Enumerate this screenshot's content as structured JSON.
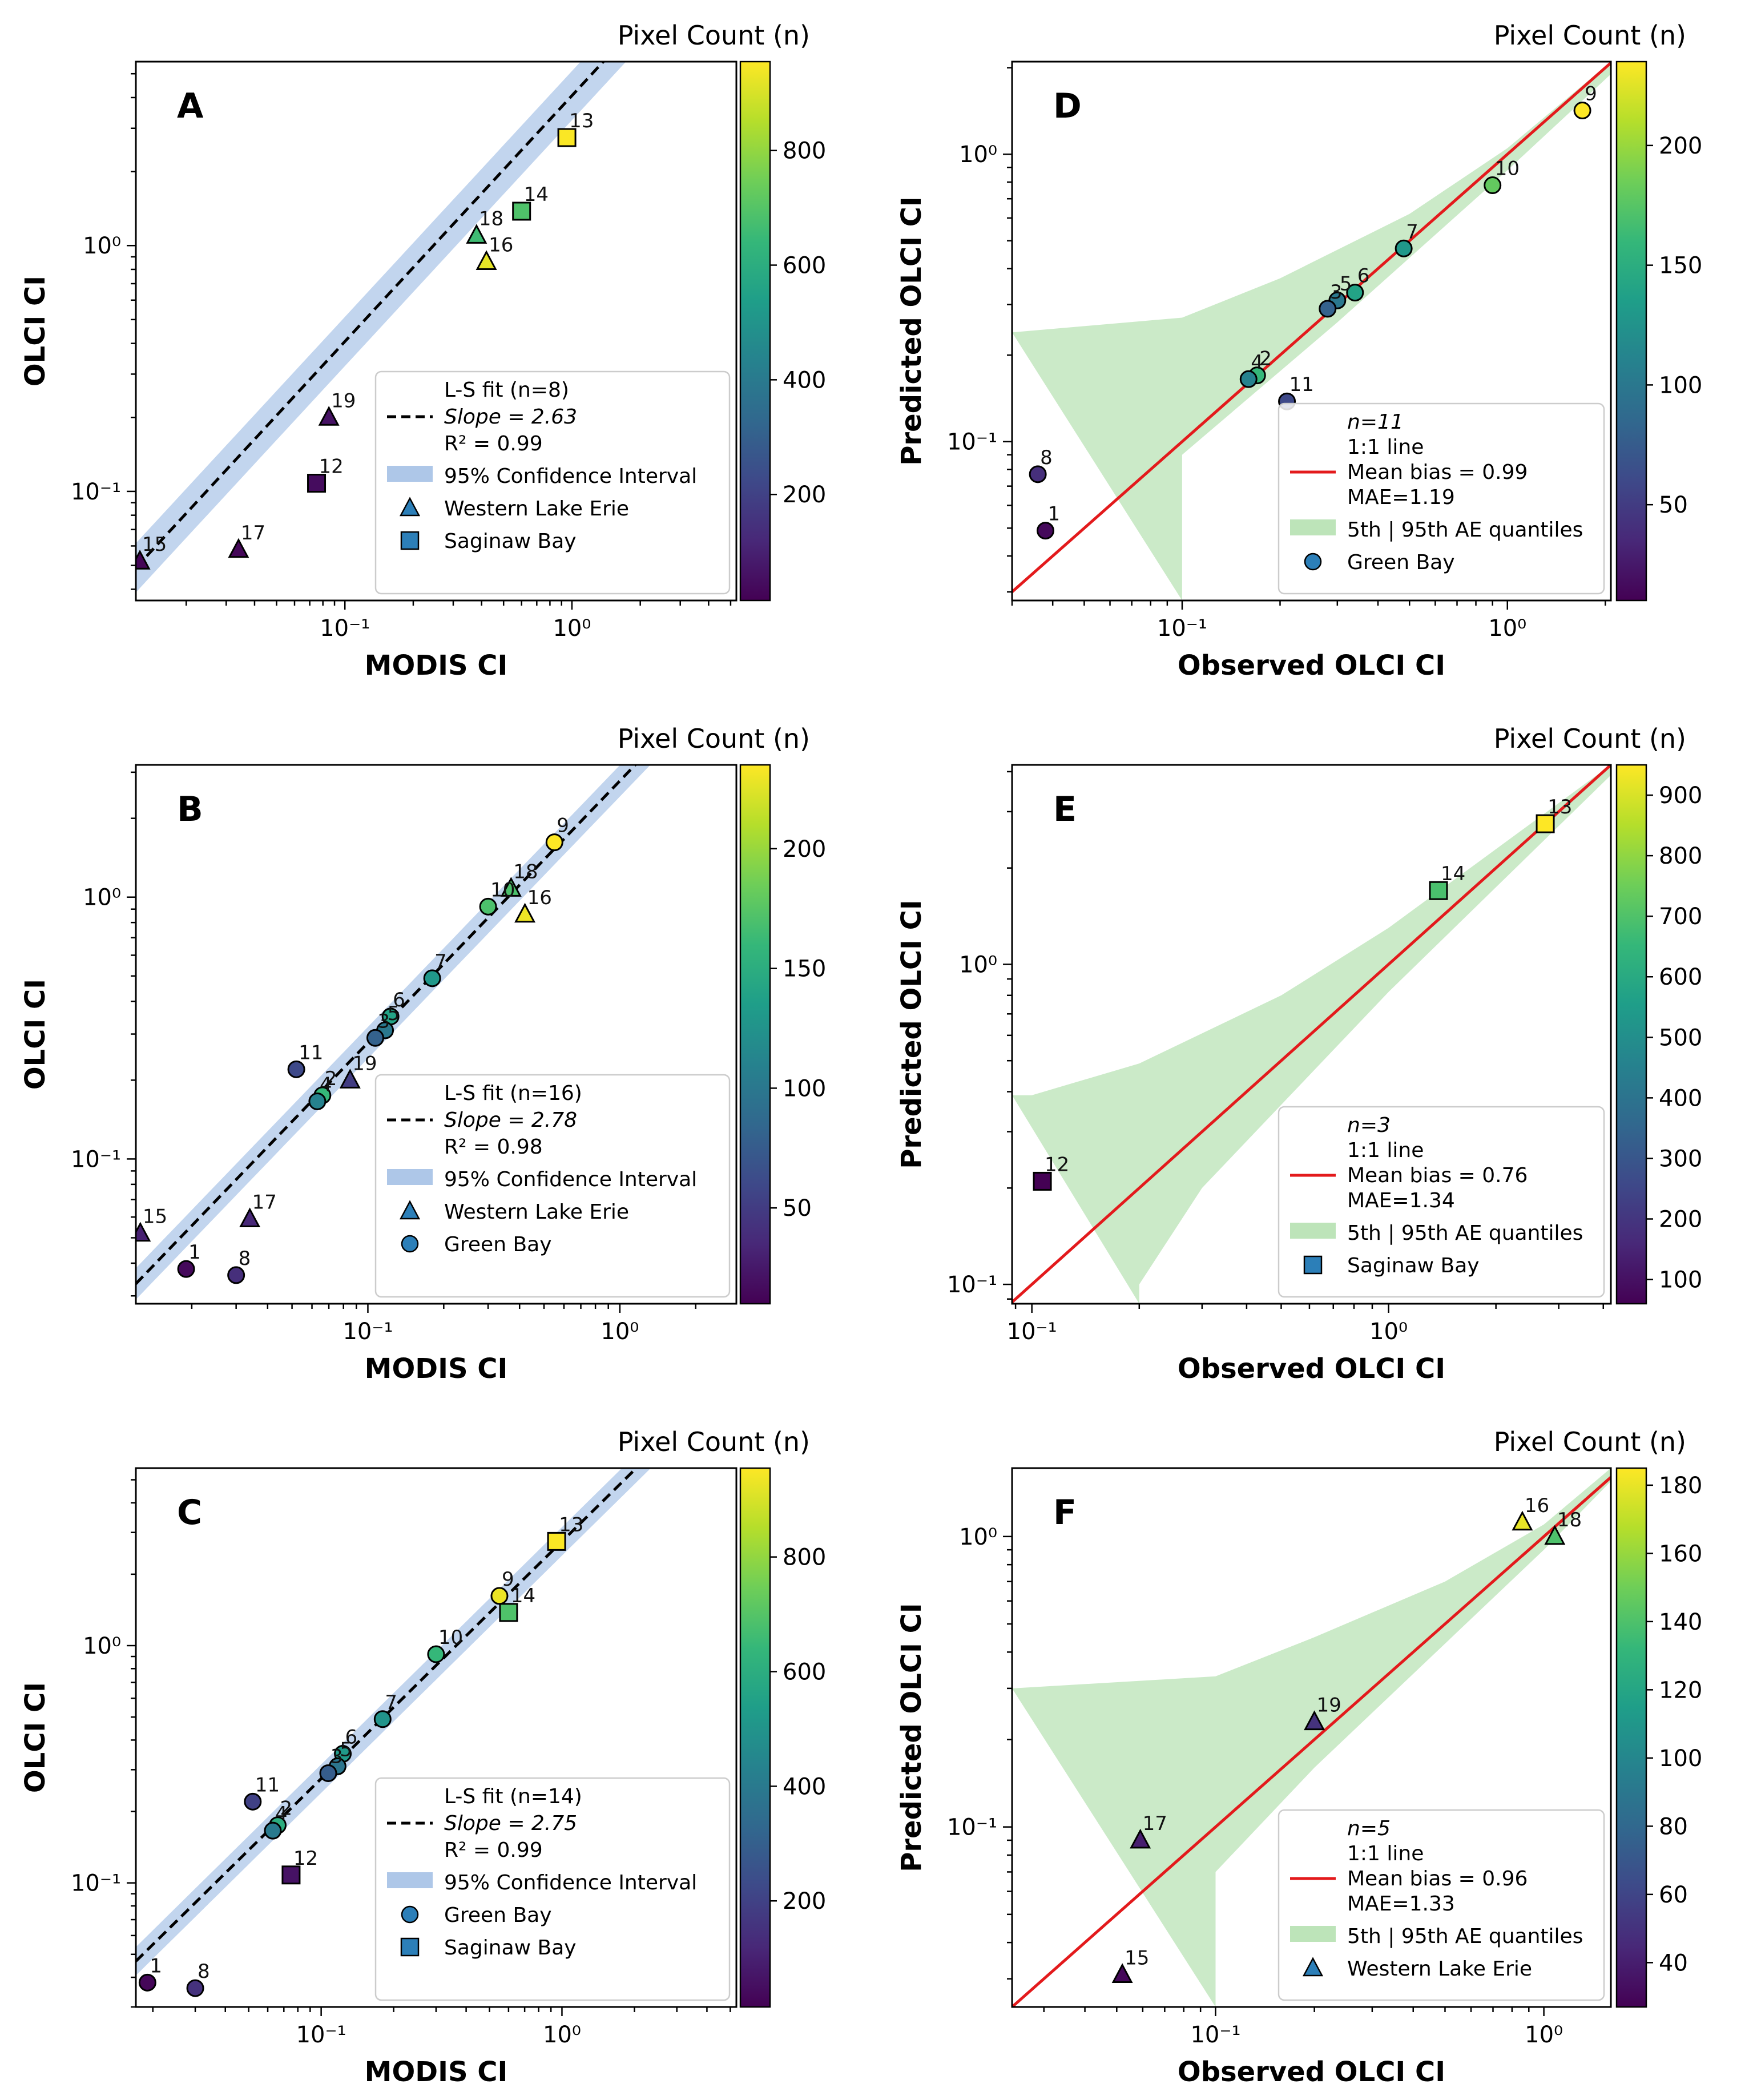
{
  "figure": {
    "panels": [
      {
        "letter": "A",
        "type": "scatter-loglog",
        "xlabel": "MODIS CI",
        "ylabel": "OLCI CI",
        "xlim": [
          0.012,
          5.3
        ],
        "ylim": [
          0.036,
          5.6
        ],
        "xticks": [
          {
            "v": 0.1,
            "label": "10⁻¹"
          },
          {
            "v": 1,
            "label": "10⁰"
          }
        ],
        "yticks": [
          {
            "v": 0.1,
            "label": "10⁻¹"
          },
          {
            "v": 1,
            "label": "10⁰"
          }
        ],
        "colorbar": {
          "title": "Pixel Count (n)",
          "min": 15,
          "max": 955,
          "ticks": [
            200,
            400,
            600,
            800
          ]
        },
        "fit": {
          "slope": 2.63,
          "intercept": 0.19,
          "band": 0.1
        },
        "legend": {
          "kind": "fit",
          "n_text": "L-S fit (n=8)",
          "slope_text": "Slope = 2.63",
          "r2_text": "R² = 0.99",
          "ci_text": "95% Confidence Interval",
          "entries": [
            {
              "marker": "triangle",
              "label": "Western Lake Erie"
            },
            {
              "marker": "square",
              "label": "Saginaw Bay"
            }
          ]
        },
        "points": [
          {
            "id": "13",
            "x": 0.95,
            "y": 2.75,
            "marker": "square",
            "n": 950
          },
          {
            "id": "14",
            "x": 0.6,
            "y": 1.38,
            "marker": "square",
            "n": 690
          },
          {
            "id": "18",
            "x": 0.38,
            "y": 1.1,
            "marker": "triangle",
            "n": 660
          },
          {
            "id": "16",
            "x": 0.42,
            "y": 0.86,
            "marker": "triangle",
            "n": 920
          },
          {
            "id": "19",
            "x": 0.085,
            "y": 0.2,
            "marker": "triangle",
            "n": 60
          },
          {
            "id": "12",
            "x": 0.075,
            "y": 0.108,
            "marker": "square",
            "n": 45
          },
          {
            "id": "17",
            "x": 0.034,
            "y": 0.058,
            "marker": "triangle",
            "n": 30
          },
          {
            "id": "15",
            "x": 0.0125,
            "y": 0.052,
            "marker": "triangle",
            "n": 25
          }
        ]
      },
      {
        "letter": "D",
        "type": "scatter-loglog",
        "xlabel": "Observed OLCI CI",
        "ylabel": "Predicted OLCI CI",
        "xlim": [
          0.03,
          2.08
        ],
        "ylim": [
          0.028,
          2.1
        ],
        "xticks": [
          {
            "v": 0.1,
            "label": "10⁻¹"
          },
          {
            "v": 1,
            "label": "10⁰"
          }
        ],
        "yticks": [
          {
            "v": 0.1,
            "label": "10⁻¹"
          },
          {
            "v": 1,
            "label": "10⁰"
          }
        ],
        "colorbar": {
          "title": "Pixel Count (n)",
          "min": 10,
          "max": 235,
          "ticks": [
            50,
            100,
            150,
            200
          ]
        },
        "oneone": true,
        "band": {
          "upper": [
            [
              0.03,
              0.24
            ],
            [
              0.1,
              0.27
            ],
            [
              0.2,
              0.37
            ],
            [
              0.5,
              0.62
            ],
            [
              1.0,
              1.05
            ],
            [
              2.08,
              2.1
            ]
          ],
          "lower": [
            [
              0.1,
              0.028
            ],
            [
              0.1,
              0.09
            ],
            [
              0.3,
              0.26
            ],
            [
              1.0,
              0.88
            ],
            [
              2.08,
              1.9
            ]
          ]
        },
        "legend": {
          "kind": "pred",
          "n_text": "n=11",
          "line_text": "1:1 line",
          "bias_text": "Mean bias = 0.99",
          "mae_text": "MAE=1.19",
          "band_text": "5th | 95th AE quantiles",
          "entries": [
            {
              "marker": "circle",
              "label": "Green Bay"
            }
          ]
        },
        "points": [
          {
            "id": "9",
            "x": 1.7,
            "y": 1.42,
            "marker": "circle",
            "n": 235
          },
          {
            "id": "10",
            "x": 0.9,
            "y": 0.78,
            "marker": "circle",
            "n": 180
          },
          {
            "id": "7",
            "x": 0.48,
            "y": 0.47,
            "marker": "circle",
            "n": 130
          },
          {
            "id": "6",
            "x": 0.34,
            "y": 0.33,
            "marker": "circle",
            "n": 140
          },
          {
            "id": "5",
            "x": 0.3,
            "y": 0.31,
            "marker": "circle",
            "n": 100
          },
          {
            "id": "3",
            "x": 0.28,
            "y": 0.29,
            "marker": "circle",
            "n": 80
          },
          {
            "id": "2",
            "x": 0.17,
            "y": 0.17,
            "marker": "circle",
            "n": 160
          },
          {
            "id": "4",
            "x": 0.16,
            "y": 0.165,
            "marker": "circle",
            "n": 110
          },
          {
            "id": "11",
            "x": 0.21,
            "y": 0.138,
            "marker": "circle",
            "n": 60
          },
          {
            "id": "8",
            "x": 0.036,
            "y": 0.077,
            "marker": "circle",
            "n": 40
          },
          {
            "id": "1",
            "x": 0.038,
            "y": 0.049,
            "marker": "circle",
            "n": 15
          }
        ]
      },
      {
        "letter": "B",
        "type": "scatter-loglog",
        "xlabel": "MODIS CI",
        "ylabel": "OLCI CI",
        "xlim": [
          0.012,
          2.9
        ],
        "ylim": [
          0.028,
          3.2
        ],
        "xticks": [
          {
            "v": 0.1,
            "label": "10⁻¹"
          },
          {
            "v": 1,
            "label": "10⁰"
          }
        ],
        "yticks": [
          {
            "v": 0.1,
            "label": "10⁻¹"
          },
          {
            "v": 1,
            "label": "10⁰"
          }
        ],
        "colorbar": {
          "title": "Pixel Count (n)",
          "min": 10,
          "max": 235,
          "ticks": [
            50,
            100,
            150,
            200
          ]
        },
        "fit": {
          "slope": 2.78,
          "intercept": 0.0,
          "band": 0.06
        },
        "legend": {
          "kind": "fit",
          "n_text": "L-S fit (n=16)",
          "slope_text": "Slope = 2.78",
          "r2_text": "R² = 0.98",
          "ci_text": "95% Confidence Interval",
          "entries": [
            {
              "marker": "triangle",
              "label": "Western Lake Erie"
            },
            {
              "marker": "circle",
              "label": "Green Bay"
            }
          ]
        },
        "points": [
          {
            "id": "9",
            "x": 0.55,
            "y": 1.62,
            "marker": "circle",
            "n": 235
          },
          {
            "id": "18",
            "x": 0.37,
            "y": 1.08,
            "marker": "triangle",
            "n": 170
          },
          {
            "id": "10",
            "x": 0.3,
            "y": 0.92,
            "marker": "circle",
            "n": 170
          },
          {
            "id": "16",
            "x": 0.42,
            "y": 0.86,
            "marker": "triangle",
            "n": 230
          },
          {
            "id": "7",
            "x": 0.18,
            "y": 0.49,
            "marker": "circle",
            "n": 130
          },
          {
            "id": "6",
            "x": 0.123,
            "y": 0.35,
            "marker": "circle",
            "n": 140
          },
          {
            "id": "5",
            "x": 0.117,
            "y": 0.31,
            "marker": "circle",
            "n": 100
          },
          {
            "id": "3",
            "x": 0.107,
            "y": 0.29,
            "marker": "circle",
            "n": 80
          },
          {
            "id": "11",
            "x": 0.052,
            "y": 0.22,
            "marker": "circle",
            "n": 60
          },
          {
            "id": "19",
            "x": 0.085,
            "y": 0.2,
            "marker": "triangle",
            "n": 50
          },
          {
            "id": "2",
            "x": 0.066,
            "y": 0.175,
            "marker": "circle",
            "n": 160
          },
          {
            "id": "4",
            "x": 0.063,
            "y": 0.166,
            "marker": "circle",
            "n": 110
          },
          {
            "id": "17",
            "x": 0.034,
            "y": 0.059,
            "marker": "triangle",
            "n": 35
          },
          {
            "id": "15",
            "x": 0.0125,
            "y": 0.052,
            "marker": "triangle",
            "n": 30
          },
          {
            "id": "1",
            "x": 0.019,
            "y": 0.038,
            "marker": "circle",
            "n": 15
          },
          {
            "id": "8",
            "x": 0.03,
            "y": 0.036,
            "marker": "circle",
            "n": 40
          }
        ]
      },
      {
        "letter": "E",
        "type": "scatter-loglog",
        "xlabel": "Observed OLCI CI",
        "ylabel": "Predicted OLCI CI",
        "xlim": [
          0.088,
          4.2
        ],
        "ylim": [
          0.087,
          4.2
        ],
        "xticks": [
          {
            "v": 0.1,
            "label": "10⁻¹"
          },
          {
            "v": 1,
            "label": "10⁰"
          }
        ],
        "yticks": [
          {
            "v": 0.1,
            "label": "10⁻¹"
          },
          {
            "v": 1,
            "label": "10⁰"
          }
        ],
        "colorbar": {
          "title": "Pixel Count (n)",
          "min": 60,
          "max": 950,
          "ticks": [
            100,
            200,
            300,
            400,
            500,
            600,
            700,
            800,
            900
          ]
        },
        "oneone": true,
        "band": {
          "upper": [
            [
              0.088,
              0.39
            ],
            [
              0.1,
              0.39
            ],
            [
              0.2,
              0.49
            ],
            [
              0.5,
              0.8
            ],
            [
              1.0,
              1.3
            ],
            [
              4.2,
              4.2
            ]
          ],
          "lower": [
            [
              0.2,
              0.087
            ],
            [
              0.2,
              0.1
            ],
            [
              0.3,
              0.2
            ],
            [
              1.0,
              0.82
            ],
            [
              4.2,
              3.9
            ]
          ]
        },
        "legend": {
          "kind": "pred",
          "n_text": "n=3",
          "line_text": "1:1 line",
          "bias_text": "Mean bias = 0.76",
          "mae_text": "MAE=1.34",
          "band_text": "5th | 95th AE quantiles",
          "entries": [
            {
              "marker": "square",
              "label": "Saginaw Bay"
            }
          ]
        },
        "points": [
          {
            "id": "13",
            "x": 2.75,
            "y": 2.75,
            "marker": "square",
            "n": 950
          },
          {
            "id": "14",
            "x": 1.38,
            "y": 1.7,
            "marker": "square",
            "n": 690
          },
          {
            "id": "12",
            "x": 0.107,
            "y": 0.21,
            "marker": "square",
            "n": 60
          }
        ]
      },
      {
        "letter": "C",
        "type": "scatter-loglog",
        "xlabel": "MODIS CI",
        "ylabel": "OLCI CI",
        "xlim": [
          0.017,
          5.3
        ],
        "ylim": [
          0.03,
          5.6
        ],
        "xticks": [
          {
            "v": 0.1,
            "label": "10⁻¹"
          },
          {
            "v": 1,
            "label": "10⁰"
          }
        ],
        "yticks": [
          {
            "v": 0.1,
            "label": "10⁻¹"
          },
          {
            "v": 1,
            "label": "10⁰"
          }
        ],
        "colorbar": {
          "title": "Pixel Count (n)",
          "min": 15,
          "max": 955,
          "ticks": [
            200,
            400,
            600,
            800
          ]
        },
        "fit": {
          "slope": 2.75,
          "intercept": 0.0,
          "band": 0.06
        },
        "legend": {
          "kind": "fit",
          "n_text": "L-S fit (n=14)",
          "slope_text": "Slope = 2.75",
          "r2_text": "R² = 0.99",
          "ci_text": "95% Confidence Interval",
          "entries": [
            {
              "marker": "circle",
              "label": "Green Bay"
            },
            {
              "marker": "square",
              "label": "Saginaw Bay"
            }
          ]
        },
        "points": [
          {
            "id": "13",
            "x": 0.95,
            "y": 2.75,
            "marker": "square",
            "n": 950
          },
          {
            "id": "9",
            "x": 0.55,
            "y": 1.62,
            "marker": "circle",
            "n": 930
          },
          {
            "id": "14",
            "x": 0.6,
            "y": 1.38,
            "marker": "square",
            "n": 690
          },
          {
            "id": "10",
            "x": 0.3,
            "y": 0.92,
            "marker": "circle",
            "n": 640
          },
          {
            "id": "7",
            "x": 0.18,
            "y": 0.49,
            "marker": "circle",
            "n": 500
          },
          {
            "id": "6",
            "x": 0.123,
            "y": 0.35,
            "marker": "circle",
            "n": 520
          },
          {
            "id": "5",
            "x": 0.117,
            "y": 0.31,
            "marker": "circle",
            "n": 380
          },
          {
            "id": "3",
            "x": 0.107,
            "y": 0.29,
            "marker": "circle",
            "n": 290
          },
          {
            "id": "11",
            "x": 0.052,
            "y": 0.22,
            "marker": "circle",
            "n": 200
          },
          {
            "id": "2",
            "x": 0.066,
            "y": 0.175,
            "marker": "circle",
            "n": 600
          },
          {
            "id": "4",
            "x": 0.063,
            "y": 0.166,
            "marker": "circle",
            "n": 400
          },
          {
            "id": "12",
            "x": 0.075,
            "y": 0.108,
            "marker": "square",
            "n": 60
          },
          {
            "id": "1",
            "x": 0.019,
            "y": 0.038,
            "marker": "circle",
            "n": 30
          },
          {
            "id": "8",
            "x": 0.03,
            "y": 0.036,
            "marker": "circle",
            "n": 150
          }
        ]
      },
      {
        "letter": "F",
        "type": "scatter-loglog",
        "xlabel": "Observed OLCI CI",
        "ylabel": "Predicted OLCI CI",
        "xlim": [
          0.024,
          1.6
        ],
        "ylim": [
          0.024,
          1.72
        ],
        "xticks": [
          {
            "v": 0.1,
            "label": "10⁻¹"
          },
          {
            "v": 1,
            "label": "10⁰"
          }
        ],
        "yticks": [
          {
            "v": 0.1,
            "label": "10⁻¹"
          },
          {
            "v": 1,
            "label": "10⁰"
          }
        ],
        "colorbar": {
          "title": "Pixel Count (n)",
          "min": 27,
          "max": 185,
          "ticks": [
            40,
            60,
            80,
            100,
            120,
            140,
            160,
            180
          ]
        },
        "oneone": true,
        "band": {
          "upper": [
            [
              0.024,
              0.3
            ],
            [
              0.1,
              0.33
            ],
            [
              0.2,
              0.45
            ],
            [
              0.5,
              0.7
            ],
            [
              1.0,
              1.1
            ],
            [
              1.6,
              1.72
            ]
          ],
          "lower": [
            [
              0.1,
              0.024
            ],
            [
              0.1,
              0.07
            ],
            [
              0.2,
              0.16
            ],
            [
              1.0,
              0.9
            ],
            [
              1.6,
              1.55
            ]
          ]
        },
        "legend": {
          "kind": "pred",
          "n_text": "n=5",
          "line_text": "1:1 line",
          "bias_text": "Mean bias = 0.96",
          "mae_text": "MAE=1.33",
          "band_text": "5th | 95th AE quantiles",
          "entries": [
            {
              "marker": "triangle",
              "label": "Western Lake Erie"
            }
          ]
        },
        "points": [
          {
            "id": "16",
            "x": 0.86,
            "y": 1.12,
            "marker": "triangle",
            "n": 180
          },
          {
            "id": "18",
            "x": 1.08,
            "y": 1.0,
            "marker": "triangle",
            "n": 140
          },
          {
            "id": "19",
            "x": 0.2,
            "y": 0.23,
            "marker": "triangle",
            "n": 50
          },
          {
            "id": "17",
            "x": 0.059,
            "y": 0.09,
            "marker": "triangle",
            "n": 40
          },
          {
            "id": "15",
            "x": 0.052,
            "y": 0.031,
            "marker": "triangle",
            "n": 30
          }
        ]
      }
    ]
  },
  "colors": {
    "viridis": [
      "#440154",
      "#482878",
      "#3e4989",
      "#31688e",
      "#26828e",
      "#1f9e89",
      "#35b779",
      "#6ece58",
      "#b5de2b",
      "#fde725"
    ],
    "ci_band": "#aec7e8",
    "fit_line": "#000000",
    "oneone_line": "#e31a1c",
    "ae_band": "#a1d99b",
    "legend_marker": "#2c7fb8"
  }
}
